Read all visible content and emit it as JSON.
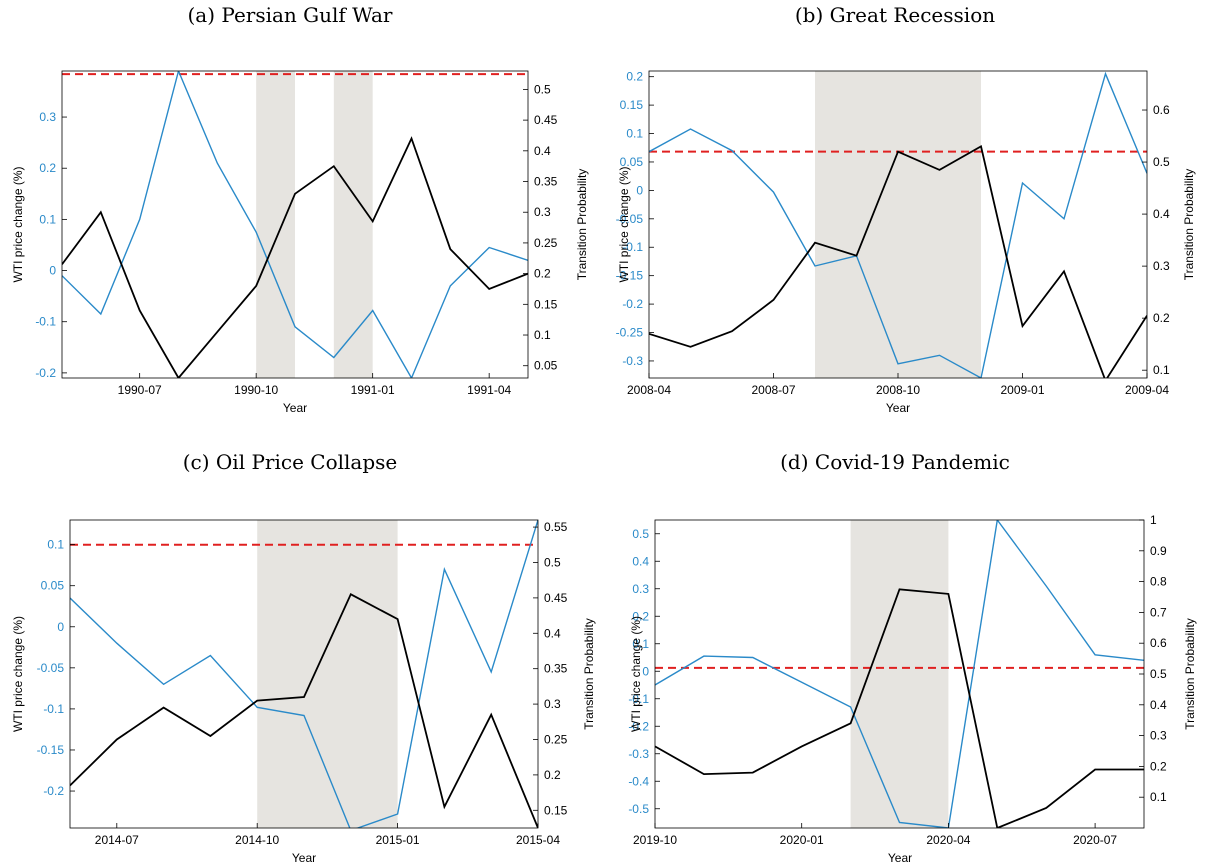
{
  "colors": {
    "wti": "#2a8ac9",
    "prob": "#000000",
    "threshold": "#e02020",
    "shade": "#e6e4e0",
    "wti_axis": "#2a8ac9",
    "prob_axis": "#000000"
  },
  "chart_data": [
    {
      "type": "line",
      "title": "(a) Persian Gulf War",
      "xlabel": "Year",
      "ylabel_left": "WTI price change (%)",
      "ylabel_right": "Transition Probability",
      "x_tick_labels": [
        "1990-07",
        "1990-10",
        "1991-01",
        "1991-04"
      ],
      "x_months": [
        "1990-05",
        "1990-06",
        "1990-07",
        "1990-08",
        "1990-09",
        "1990-10",
        "1990-11",
        "1990-12",
        "1991-01",
        "1991-02",
        "1991-03",
        "1991-04",
        "1991-05"
      ],
      "y_left_ticks": [
        "0.3",
        "0.2",
        "0.1",
        "0",
        "-0.1",
        "-0.2"
      ],
      "y_right_ticks": [
        "0.5",
        "0.45",
        "0.4",
        "0.35",
        "0.3",
        "0.25",
        "0.2",
        "0.15",
        "0.1",
        "0.05"
      ],
      "ylim_left": [
        -0.21,
        0.39
      ],
      "ylim_right": [
        0.03,
        0.53
      ],
      "shaded_regions": [
        [
          "1990-10",
          "1990-11"
        ],
        [
          "1990-12",
          "1991-01"
        ]
      ],
      "threshold_right": 0.525,
      "series": [
        {
          "values": [
            -0.01,
            -0.085,
            0.1,
            0.39,
            0.21,
            0.075,
            -0.11,
            -0.17,
            -0.078,
            -0.21,
            -0.03,
            0.045,
            0.02
          ]
        },
        {
          "values": [
            0.215,
            0.3,
            0.14,
            0.03,
            0.105,
            0.18,
            0.33,
            0.375,
            0.285,
            0.42,
            0.24,
            0.175,
            0.2
          ]
        }
      ]
    },
    {
      "type": "line",
      "title": "(b) Great Recession",
      "xlabel": "Year",
      "ylabel_left": "WTI price change (%)",
      "ylabel_right": "Transition Probability",
      "x_tick_labels": [
        "2008-04",
        "2008-07",
        "2008-10",
        "2009-01",
        "2009-04"
      ],
      "x_months": [
        "2008-04",
        "2008-05",
        "2008-06",
        "2008-07",
        "2008-08",
        "2008-09",
        "2008-10",
        "2008-11",
        "2008-12",
        "2009-01",
        "2009-02",
        "2009-03",
        "2009-04"
      ],
      "y_left_ticks": [
        "0.2",
        "0.15",
        "0.1",
        "0.05",
        "0",
        "-0.05",
        "-0.1",
        "-0.15",
        "-0.2",
        "-0.25",
        "-0.3"
      ],
      "y_right_ticks": [
        "0.6",
        "0.5",
        "0.4",
        "0.3",
        "0.2",
        "0.1"
      ],
      "ylim_left": [
        -0.33,
        0.21
      ],
      "ylim_right": [
        0.085,
        0.675
      ],
      "shaded_regions": [
        [
          "2008-08",
          "2008-12"
        ]
      ],
      "threshold_right": 0.52,
      "series": [
        {
          "values": [
            0.068,
            0.108,
            0.07,
            -0.003,
            -0.133,
            -0.115,
            -0.305,
            -0.29,
            -0.33,
            0.013,
            -0.05,
            0.205,
            0.03
          ]
        },
        {
          "values": [
            0.17,
            0.145,
            0.175,
            0.235,
            0.345,
            0.32,
            0.52,
            0.485,
            0.53,
            0.185,
            0.29,
            0.08,
            0.205
          ]
        }
      ]
    },
    {
      "type": "line",
      "title": "(c) Oil Price Collapse",
      "xlabel": "Year",
      "ylabel_left": "WTI price change (%)",
      "ylabel_right": "Transition Probability",
      "x_tick_labels": [
        "2014-07",
        "2014-10",
        "2015-01",
        "2015-04"
      ],
      "x_months": [
        "2014-06",
        "2014-07",
        "2014-08",
        "2014-09",
        "2014-10",
        "2014-11",
        "2014-12",
        "2015-01",
        "2015-02",
        "2015-03",
        "2015-04"
      ],
      "y_left_ticks": [
        "0.1",
        "0.05",
        "0",
        "-0.05",
        "-0.1",
        "-0.15",
        "-0.2"
      ],
      "y_right_ticks": [
        "0.55",
        "0.5",
        "0.45",
        "0.4",
        "0.35",
        "0.3",
        "0.25",
        "0.2",
        "0.15"
      ],
      "ylim_left": [
        -0.245,
        0.13
      ],
      "ylim_right": [
        0.125,
        0.56
      ],
      "shaded_regions": [
        [
          "2014-10",
          "2015-01"
        ]
      ],
      "threshold_right": 0.525,
      "series": [
        {
          "values": [
            0.035,
            -0.02,
            -0.07,
            -0.035,
            -0.098,
            -0.108,
            -0.248,
            -0.228,
            0.07,
            -0.055,
            0.13
          ]
        },
        {
          "values": [
            0.185,
            0.25,
            0.295,
            0.255,
            0.305,
            0.31,
            0.455,
            0.42,
            0.155,
            0.285,
            0.125
          ]
        }
      ]
    },
    {
      "type": "line",
      "title": "(d) Covid-19 Pandemic",
      "xlabel": "Year",
      "ylabel_left": "WTI price change (%)",
      "ylabel_right": "Transition Probability",
      "x_tick_labels": [
        "2019-10",
        "2020-01",
        "2020-04",
        "2020-07"
      ],
      "x_months": [
        "2019-10",
        "2019-11",
        "2019-12",
        "2020-01",
        "2020-02",
        "2020-03",
        "2020-04",
        "2020-05",
        "2020-06",
        "2020-07",
        "2020-08"
      ],
      "y_left_ticks": [
        "0.5",
        "0.4",
        "0.3",
        "0.2",
        "0.1",
        "0",
        "-0.1",
        "-0.2",
        "-0.3",
        "-0.4",
        "-0.5"
      ],
      "y_right_ticks": [
        "1",
        "0.9",
        "0.8",
        "0.7",
        "0.6",
        "0.5",
        "0.4",
        "0.3",
        "0.2",
        "0.1"
      ],
      "ylim_left": [
        -0.57,
        0.55
      ],
      "ylim_right": [
        0.0,
        1.0
      ],
      "shaded_regions": [
        [
          "2020-02",
          "2020-04"
        ]
      ],
      "threshold_right": 0.52,
      "series": [
        {
          "values": [
            -0.05,
            0.055,
            0.05,
            -0.04,
            -0.13,
            -0.55,
            -0.57,
            0.55,
            0.31,
            0.06,
            0.04
          ]
        },
        {
          "values": [
            0.265,
            0.175,
            0.18,
            0.265,
            0.34,
            0.775,
            0.76,
            0.0,
            0.065,
            0.19,
            0.19
          ]
        }
      ]
    }
  ]
}
